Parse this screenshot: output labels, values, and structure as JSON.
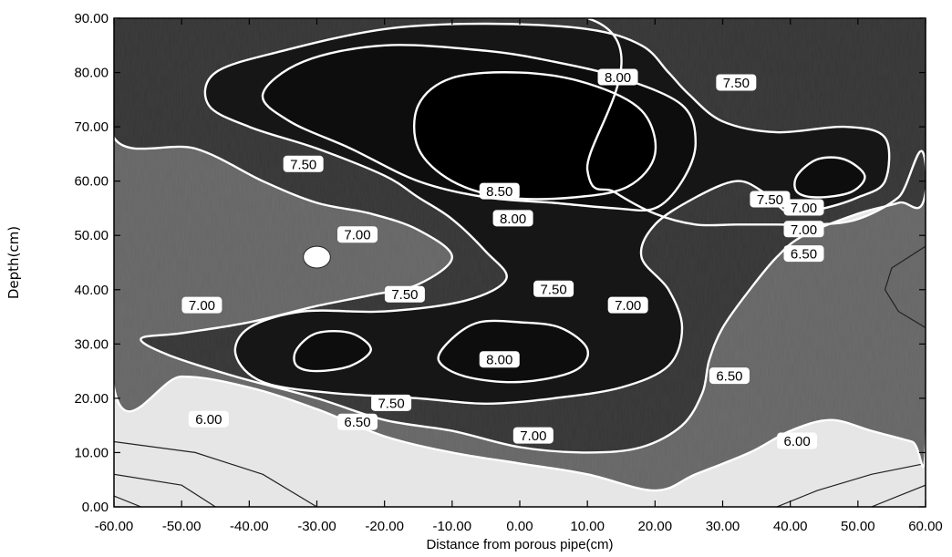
{
  "chart_data": {
    "type": "contour",
    "xlabel": "Distance from porous pipe(cm)",
    "ylabel": "Depth(cm)",
    "xlim": [
      -60,
      60
    ],
    "ylim": [
      0,
      90
    ],
    "x_ticks": [
      "-60.00",
      "-50.00",
      "-40.00",
      "-30.00",
      "-20.00",
      "-10.00",
      "0.00",
      "10.00",
      "20.00",
      "30.00",
      "40.00",
      "50.00",
      "60.00"
    ],
    "y_ticks": [
      "0.00",
      "10.00",
      "20.00",
      "30.00",
      "40.00",
      "50.00",
      "60.00",
      "70.00",
      "80.00",
      "90.00"
    ],
    "grid": false,
    "colors": {
      "high": "#141414",
      "mid": "#6e6e6e",
      "low": "#e6e6e6",
      "contour_line": "#ffffff"
    },
    "contours": [
      {
        "level": 6.5,
        "polygons": [
          [
            [
              -60,
              22
            ],
            [
              -50,
              24
            ],
            [
              -40,
              22
            ],
            [
              -30,
              18
            ],
            [
              -20,
              13
            ],
            [
              -10,
              10
            ],
            [
              0,
              8
            ],
            [
              10,
              6
            ],
            [
              20,
              3
            ],
            [
              26,
              6
            ],
            [
              34,
              10
            ],
            [
              40,
              14
            ],
            [
              46,
              16
            ],
            [
              52,
              14
            ],
            [
              58,
              12
            ],
            [
              60,
              11
            ],
            [
              60,
              63
            ],
            [
              56,
              57
            ],
            [
              50,
              53
            ],
            [
              44,
              52
            ],
            [
              38,
              52
            ],
            [
              32,
              52
            ],
            [
              26,
              52
            ],
            [
              20,
              54
            ],
            [
              14,
              58
            ],
            [
              10,
              62
            ],
            [
              10,
              90
            ],
            [
              -60,
              90
            ]
          ]
        ]
      },
      {
        "level": 7.0,
        "polygons": [
          [
            [
              -56,
              31
            ],
            [
              -52,
              28
            ],
            [
              -42,
              24
            ],
            [
              -30,
              20
            ],
            [
              -20,
              16
            ],
            [
              -10,
              14
            ],
            [
              0,
              11
            ],
            [
              10,
              10
            ],
            [
              18,
              11
            ],
            [
              24,
              15
            ],
            [
              27,
              21
            ],
            [
              28,
              27
            ],
            [
              30,
              33
            ],
            [
              34,
              40
            ],
            [
              38,
              46
            ],
            [
              42,
              50
            ],
            [
              50,
              54
            ],
            [
              56,
              56
            ],
            [
              60,
              58
            ],
            [
              60,
              90
            ],
            [
              -60,
              90
            ],
            [
              -60,
              68
            ],
            [
              -48,
              66
            ],
            [
              -38,
              60
            ],
            [
              -30,
              56
            ],
            [
              -22,
              54
            ],
            [
              -15,
              51
            ],
            [
              -10,
              46
            ],
            [
              -15,
              41
            ],
            [
              -22,
              39
            ],
            [
              -30,
              37
            ],
            [
              -40,
              34
            ],
            [
              -50,
              32
            ]
          ]
        ]
      },
      {
        "level": 7.5,
        "polygons": [
          [
            [
              -46,
              74
            ],
            [
              -40,
              70
            ],
            [
              -30,
              66
            ],
            [
              -20,
              61
            ],
            [
              -15,
              57
            ],
            [
              -10,
              53
            ],
            [
              -5,
              47
            ],
            [
              -2,
              42
            ],
            [
              -8,
              38
            ],
            [
              -20,
              36
            ],
            [
              -32,
              36
            ],
            [
              -40,
              33
            ],
            [
              -42,
              28
            ],
            [
              -38,
              23
            ],
            [
              -28,
              21
            ],
            [
              -15,
              20
            ],
            [
              -5,
              19
            ],
            [
              5,
              20
            ],
            [
              15,
              22
            ],
            [
              22,
              26
            ],
            [
              24,
              33
            ],
            [
              22,
              40
            ],
            [
              18,
              46
            ],
            [
              20,
              52
            ],
            [
              26,
              57
            ],
            [
              32,
              60
            ],
            [
              36,
              58
            ],
            [
              40,
              54
            ],
            [
              45,
              55
            ],
            [
              50,
              57
            ],
            [
              54,
              60
            ],
            [
              54,
              68
            ],
            [
              48,
              70
            ],
            [
              38,
              69
            ],
            [
              30,
              71
            ],
            [
              25,
              76
            ],
            [
              22,
              80
            ],
            [
              18,
              85
            ],
            [
              10,
              88
            ],
            [
              -5,
              89
            ],
            [
              -20,
              88
            ],
            [
              -35,
              84
            ],
            [
              -45,
              80
            ]
          ]
        ]
      },
      {
        "level": 8.0,
        "polygons": [
          [
            [
              -38,
              76
            ],
            [
              -32,
              82
            ],
            [
              -20,
              85
            ],
            [
              -5,
              84
            ],
            [
              5,
              82
            ],
            [
              15,
              79
            ],
            [
              24,
              74
            ],
            [
              26,
              67
            ],
            [
              24,
              60
            ],
            [
              20,
              55
            ],
            [
              14,
              55
            ],
            [
              5,
              56
            ],
            [
              -5,
              57
            ],
            [
              -15,
              60
            ],
            [
              -25,
              66
            ],
            [
              -34,
              71
            ]
          ],
          [
            [
              -10,
              31
            ],
            [
              -6,
              34
            ],
            [
              0,
              34
            ],
            [
              6,
              33
            ],
            [
              10,
              29
            ],
            [
              8,
              25
            ],
            [
              0,
              23
            ],
            [
              -8,
              24
            ],
            [
              -12,
              27
            ]
          ],
          [
            [
              -33,
              29
            ],
            [
              -30,
              32
            ],
            [
              -25,
              32
            ],
            [
              -22,
              29
            ],
            [
              -25,
              26
            ],
            [
              -30,
              25
            ],
            [
              -33,
              26
            ]
          ],
          [
            [
              41,
              61
            ],
            [
              44,
              64
            ],
            [
              48,
              64
            ],
            [
              51,
              61
            ],
            [
              49,
              58
            ],
            [
              44,
              57
            ],
            [
              41,
              58
            ]
          ]
        ]
      },
      {
        "level": 8.5,
        "polygons": [
          [
            [
              -15,
              74
            ],
            [
              -10,
              79
            ],
            [
              0,
              80
            ],
            [
              10,
              78
            ],
            [
              18,
              73
            ],
            [
              20,
              65
            ],
            [
              16,
              59
            ],
            [
              8,
              57
            ],
            [
              -2,
              57
            ],
            [
              -10,
              60
            ],
            [
              -15,
              66
            ]
          ]
        ]
      }
    ],
    "contour_labels": [
      {
        "text": "8.00",
        "x": 14.5,
        "y": 79
      },
      {
        "text": "7.50",
        "x": 32,
        "y": 78
      },
      {
        "text": "8.50",
        "x": -3,
        "y": 58
      },
      {
        "text": "8.00",
        "x": -1,
        "y": 53
      },
      {
        "text": "7.50",
        "x": -32,
        "y": 63
      },
      {
        "text": "7.00",
        "x": -24,
        "y": 50
      },
      {
        "text": "7.50",
        "x": 37,
        "y": 56.5
      },
      {
        "text": "7.00",
        "x": 42,
        "y": 55
      },
      {
        "text": "7.00",
        "x": 42,
        "y": 51
      },
      {
        "text": "6.50",
        "x": 42,
        "y": 46.5
      },
      {
        "text": "7.00",
        "x": -47,
        "y": 37
      },
      {
        "text": "7.50",
        "x": -17,
        "y": 39
      },
      {
        "text": "7.50",
        "x": 5,
        "y": 40
      },
      {
        "text": "7.00",
        "x": 16,
        "y": 37
      },
      {
        "text": "8.00",
        "x": -3,
        "y": 27
      },
      {
        "text": "7.50",
        "x": -19,
        "y": 19
      },
      {
        "text": "6.50",
        "x": 31,
        "y": 24
      },
      {
        "text": "6.00",
        "x": -46,
        "y": 16
      },
      {
        "text": "6.50",
        "x": -24,
        "y": 15.5
      },
      {
        "text": "7.00",
        "x": 2,
        "y": 13
      },
      {
        "text": "6.00",
        "x": 41,
        "y": 12
      }
    ],
    "highlight_spots": [
      {
        "x": -30,
        "y": 46,
        "rx": 2,
        "ry": 2
      }
    ]
  }
}
